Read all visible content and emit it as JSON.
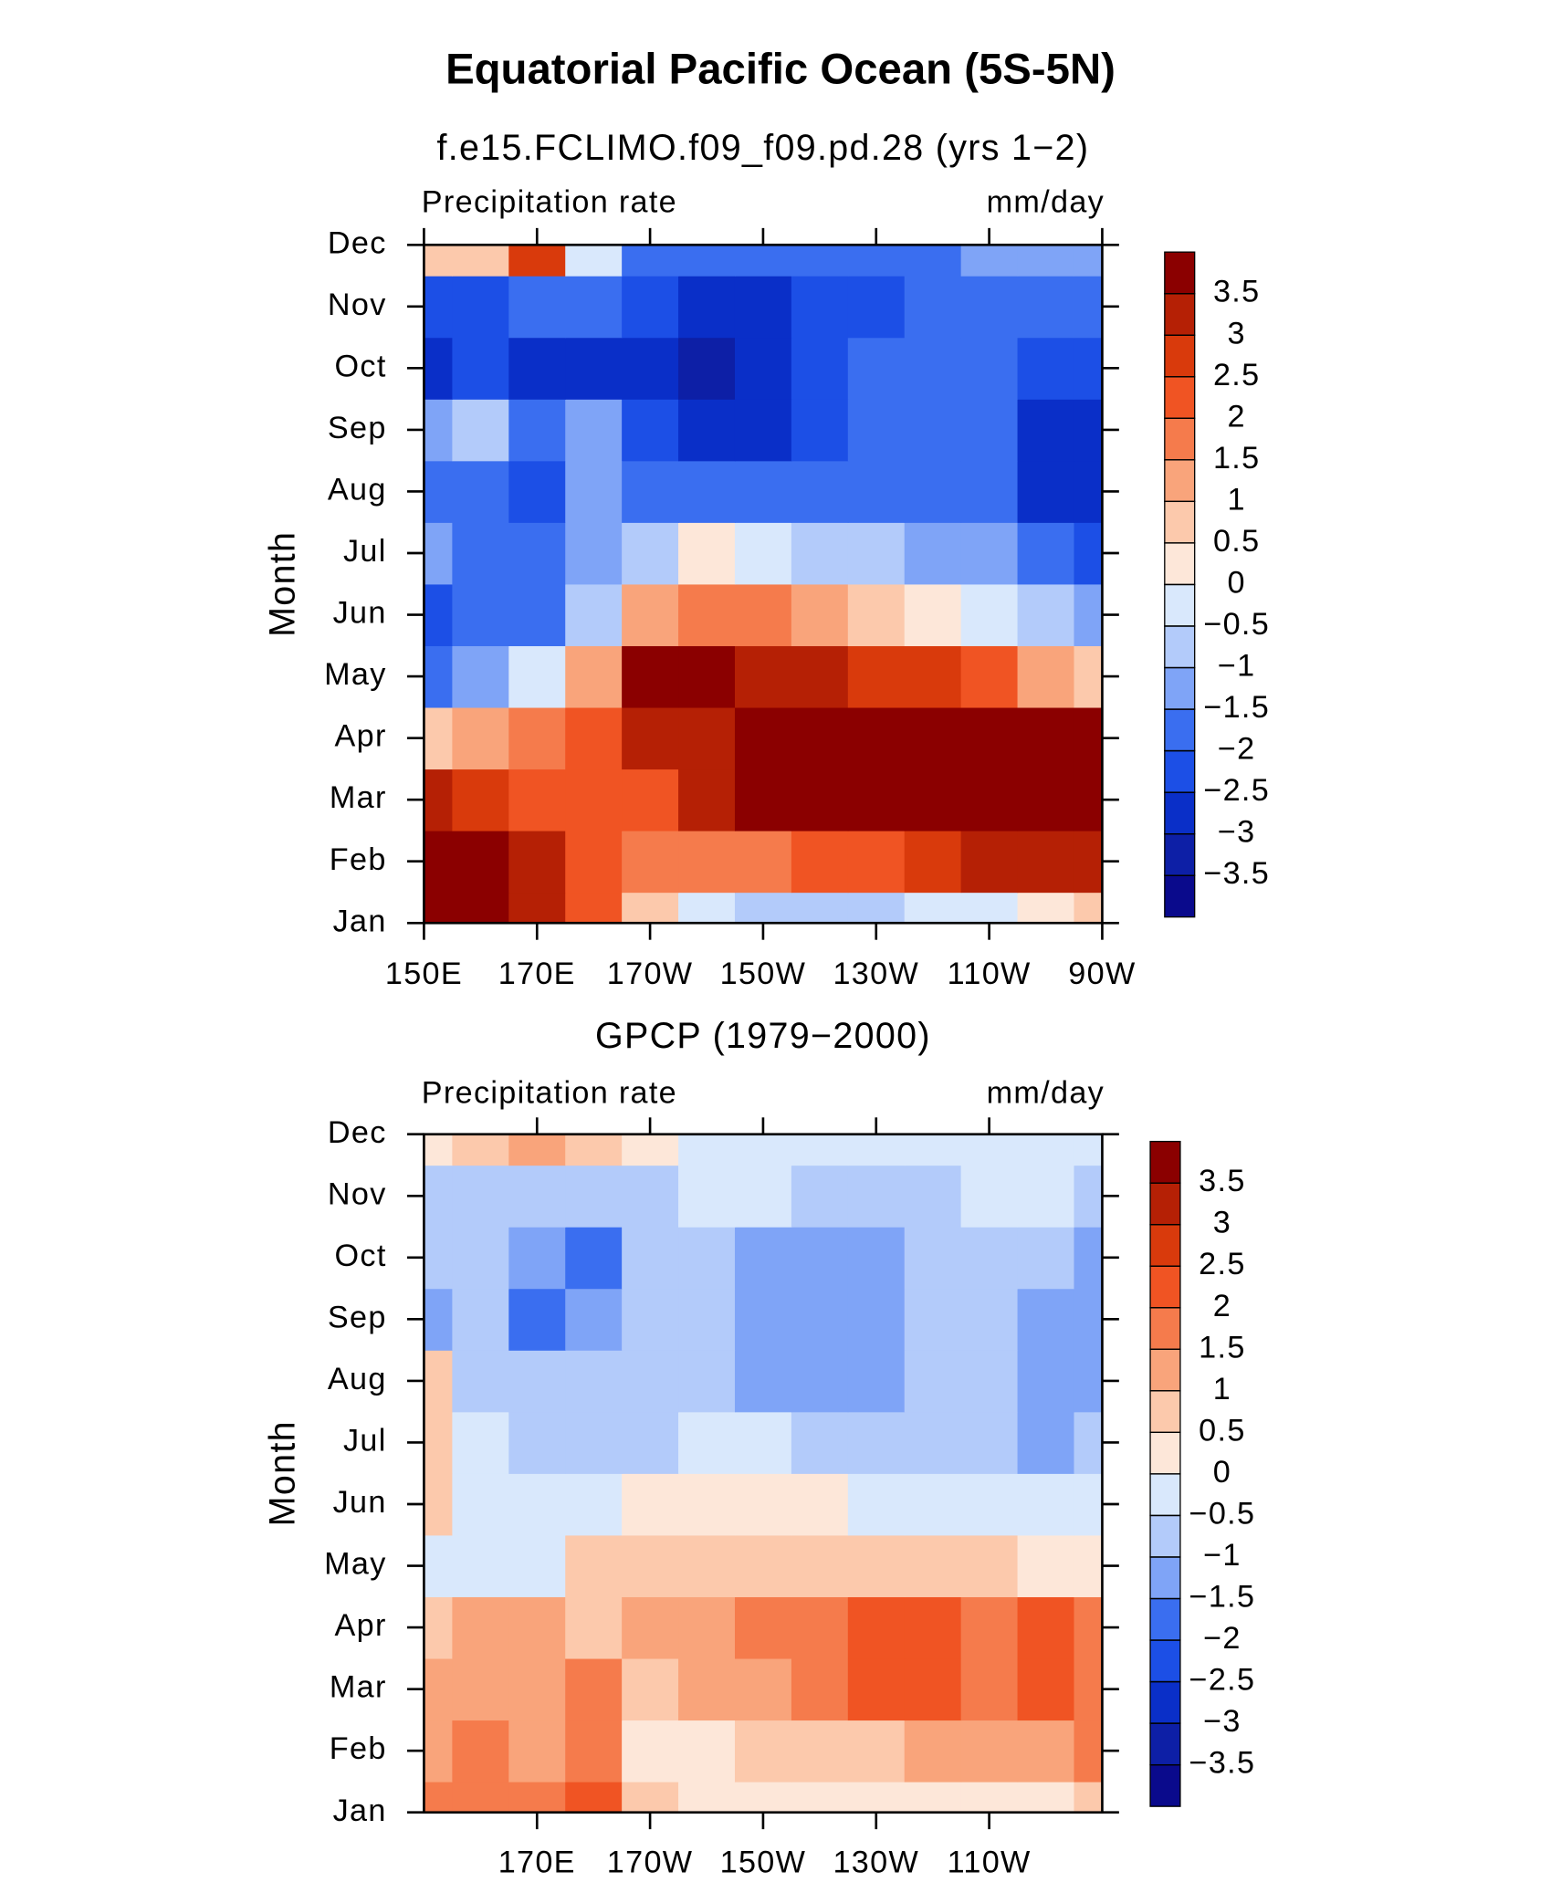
{
  "title": "Equatorial Pacific Ocean (5S-5N)",
  "chart_data": [
    {
      "type": "contour",
      "subtitle": "f.e15.FCLIMO.f09_f09.pd.28 (yrs 1−2)",
      "left_label": "Precipitation rate",
      "right_label": "mm/day",
      "ylabel": "Month",
      "categories": [
        "Jan",
        "Feb",
        "Mar",
        "Apr",
        "May",
        "Jun",
        "Jul",
        "Aug",
        "Sep",
        "Oct",
        "Nov",
        "Dec"
      ],
      "x": [
        150,
        160,
        170,
        180,
        190,
        200,
        210,
        220,
        230,
        240,
        250,
        260,
        270
      ],
      "xlim": [
        150,
        270
      ],
      "xticks": [
        {
          "value": 150,
          "label": "150E"
        },
        {
          "value": 170,
          "label": "170E"
        },
        {
          "value": 190,
          "label": "170W"
        },
        {
          "value": 210,
          "label": "150W"
        },
        {
          "value": 230,
          "label": "130W"
        },
        {
          "value": 250,
          "label": "110W"
        },
        {
          "value": 270,
          "label": "90W"
        }
      ],
      "levels": [
        {
          "value": -3.5,
          "label": "−3.5"
        },
        {
          "value": -3,
          "label": "−3"
        },
        {
          "value": -2.5,
          "label": "−2.5"
        },
        {
          "value": -2,
          "label": "−2"
        },
        {
          "value": -1.5,
          "label": "−1.5"
        },
        {
          "value": -1,
          "label": "−1"
        },
        {
          "value": -0.5,
          "label": "−0.5"
        },
        0,
        0.5,
        1,
        1.5,
        2,
        2.5,
        3,
        3.5
      ],
      "colors": [
        "#0a0a8c",
        "#0d1fa6",
        "#0a2fc8",
        "#1c4fe6",
        "#3a6ef0",
        "#7fa4f7",
        "#b3cbfa",
        "#d9e8fc",
        "#fde7d9",
        "#fcc9ac",
        "#f9a47b",
        "#f57b4c",
        "#f05423",
        "#d93a0c",
        "#b52005",
        "#8b0000"
      ],
      "values": [
        [
          4,
          4,
          3,
          2,
          0.5,
          -0.5,
          -1,
          -1,
          -0.7,
          -0.3,
          -0.2,
          0.2,
          0.5
        ],
        [
          4,
          4,
          3,
          2,
          1.5,
          1.5,
          1.8,
          2,
          2.2,
          2.5,
          3,
          3.2,
          3.3
        ],
        [
          3,
          2.8,
          2.2,
          2,
          2,
          3,
          4,
          4,
          4,
          4,
          4,
          4,
          4
        ],
        [
          0.5,
          1,
          1.5,
          2,
          3,
          3,
          4,
          4,
          4,
          4,
          4,
          4,
          4
        ],
        [
          -2,
          -1.5,
          -0.5,
          1,
          3.5,
          3.5,
          3,
          3,
          2.8,
          2.5,
          2,
          1,
          0.5
        ],
        [
          -2.2,
          -2,
          -2,
          -0.8,
          1,
          1.8,
          1.5,
          1,
          0.5,
          0,
          -0.5,
          -1,
          -1.5
        ],
        [
          -1.5,
          -2,
          -2,
          -1.5,
          -0.8,
          0,
          -0.3,
          -1,
          -1,
          -1.3,
          -1.5,
          -2,
          -2.5
        ],
        [
          -1.8,
          -2,
          -2.3,
          -1.5,
          -1.8,
          -2,
          -2,
          -2,
          -2,
          -2,
          -2,
          -2.6,
          -2.6
        ],
        [
          -1.5,
          -1,
          -2,
          -1.5,
          -2.5,
          -3,
          -3,
          -2.5,
          -2,
          -2,
          -2,
          -2.6,
          -2.6
        ],
        [
          -3,
          -2.5,
          -3,
          -3,
          -3,
          -3.2,
          -3,
          -2.5,
          -2,
          -2,
          -2,
          -2.5,
          -2.5
        ],
        [
          -2.5,
          -2.5,
          -2,
          -2,
          -2.5,
          -3,
          -3,
          -2.5,
          -2.5,
          -2,
          -2,
          -1.8,
          -1.8
        ],
        [
          0.5,
          0.5,
          2.5,
          -0.5,
          -2,
          -2,
          -2,
          -2,
          -2,
          -2,
          -1.5,
          -1.2,
          -1.2
        ]
      ]
    },
    {
      "type": "contour",
      "subtitle": "GPCP (1979−2000)",
      "left_label": "Precipitation rate",
      "right_label": "mm/day",
      "ylabel": "Month",
      "categories": [
        "Jan",
        "Feb",
        "Mar",
        "Apr",
        "May",
        "Jun",
        "Jul",
        "Aug",
        "Sep",
        "Oct",
        "Nov",
        "Dec"
      ],
      "x": [
        150,
        160,
        170,
        180,
        190,
        200,
        210,
        220,
        230,
        240,
        250,
        260,
        270
      ],
      "xlim": [
        150,
        270
      ],
      "xticks": [
        {
          "value": 170,
          "label": "170E"
        },
        {
          "value": 190,
          "label": "170W"
        },
        {
          "value": 210,
          "label": "150W"
        },
        {
          "value": 230,
          "label": "130W"
        },
        {
          "value": 250,
          "label": "110W"
        }
      ],
      "levels": [
        {
          "value": -3.5,
          "label": "−3.5"
        },
        {
          "value": -3,
          "label": "−3"
        },
        {
          "value": -2.5,
          "label": "−2.5"
        },
        {
          "value": -2,
          "label": "−2"
        },
        {
          "value": -1.5,
          "label": "−1.5"
        },
        {
          "value": -1,
          "label": "−1"
        },
        {
          "value": -0.5,
          "label": "−0.5"
        },
        0,
        0.5,
        1,
        1.5,
        2,
        2.5,
        3,
        3.5
      ],
      "colors": [
        "#0a0a8c",
        "#0d1fa6",
        "#0a2fc8",
        "#1c4fe6",
        "#3a6ef0",
        "#7fa4f7",
        "#b3cbfa",
        "#d9e8fc",
        "#fde7d9",
        "#fcc9ac",
        "#f9a47b",
        "#f57b4c",
        "#f05423",
        "#d93a0c",
        "#b52005",
        "#8b0000"
      ],
      "values": [
        [
          1.5,
          1.5,
          1.5,
          2,
          0.5,
          0.3,
          0.3,
          0.3,
          0.2,
          0.3,
          0.3,
          0.4,
          0.5
        ],
        [
          1,
          1.5,
          1.2,
          1.8,
          0.4,
          0.4,
          0.8,
          0.8,
          0.8,
          1,
          1.2,
          1.4,
          1.5
        ],
        [
          1.3,
          1.2,
          1.3,
          1.5,
          0.6,
          1,
          1.3,
          1.6,
          2,
          2,
          1.8,
          2,
          1.6
        ],
        [
          0.5,
          1,
          1.2,
          0.8,
          1,
          1.2,
          1.5,
          1.6,
          2,
          2,
          1.6,
          2,
          1.5
        ],
        [
          -0.3,
          -0.3,
          -0.2,
          0.5,
          0.7,
          0.6,
          0.6,
          0.8,
          0.8,
          0.7,
          0.5,
          0.4,
          0.3
        ],
        [
          0.5,
          -0.3,
          -0.3,
          -0.3,
          0.2,
          0.3,
          0.2,
          0,
          -0.1,
          -0.2,
          -0.2,
          -0.2,
          -0.2
        ],
        [
          0.6,
          -0.5,
          -0.6,
          -0.6,
          -0.6,
          -0.5,
          -0.5,
          -0.6,
          -0.7,
          -0.8,
          -0.9,
          -1.2,
          -1
        ],
        [
          0.5,
          -0.8,
          -0.8,
          -0.8,
          -0.8,
          -0.8,
          -1.1,
          -1.1,
          -1.1,
          -0.9,
          -1,
          -1.2,
          -1.2
        ],
        [
          -1.2,
          -1,
          -1.6,
          -1.2,
          -1,
          -1,
          -1.2,
          -1.2,
          -1.2,
          -0.9,
          -0.9,
          -1.2,
          -1.2
        ],
        [
          -1,
          -1,
          -1.2,
          -1.6,
          -0.8,
          -0.8,
          -1.2,
          -1.2,
          -1.2,
          -0.8,
          -0.8,
          -1,
          -1.2
        ],
        [
          -0.8,
          -0.6,
          -0.7,
          -0.6,
          -0.6,
          -0.5,
          -0.5,
          -0.6,
          -0.6,
          -0.6,
          -0.5,
          -0.5,
          -0.6
        ],
        [
          0.2,
          0.5,
          1,
          0.5,
          0.3,
          -0.3,
          -0.3,
          -0.3,
          -0.3,
          -0.3,
          -0.3,
          -0.4,
          -0.4
        ]
      ]
    }
  ]
}
